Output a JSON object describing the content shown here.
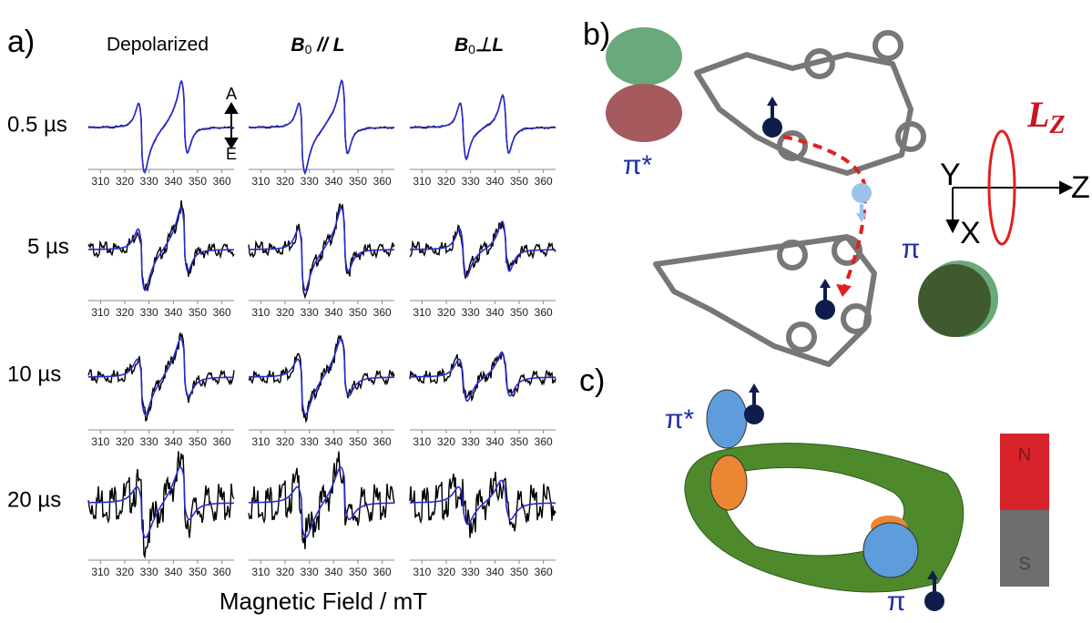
{
  "panel_a": {
    "label": "a)",
    "columns": [
      {
        "text": "Depolarized"
      },
      {
        "b": "B",
        "sub": "0",
        "rel": " // ",
        "l": "L"
      },
      {
        "b": "B",
        "sub": "0",
        "rel": "⊥",
        "l": "L"
      }
    ],
    "rows": [
      "0.5 µs",
      "5 µs",
      "10 µs",
      "20 µs"
    ],
    "ticks": [
      310,
      320,
      330,
      340,
      350,
      360
    ],
    "x_label": "Magnetic Field / mT",
    "absorption": "A",
    "emission": "E"
  },
  "panel_b": {
    "label": "b)",
    "pi_star": "π*",
    "pi": "π",
    "axis_y": "Y",
    "axis_z": "Z",
    "axis_x": "X",
    "l": "L",
    "l_sub": "Z"
  },
  "panel_c": {
    "label": "c)",
    "pi_star": "π*",
    "pi": "π",
    "magnet_n": "N",
    "magnet_s": "S"
  }
}
